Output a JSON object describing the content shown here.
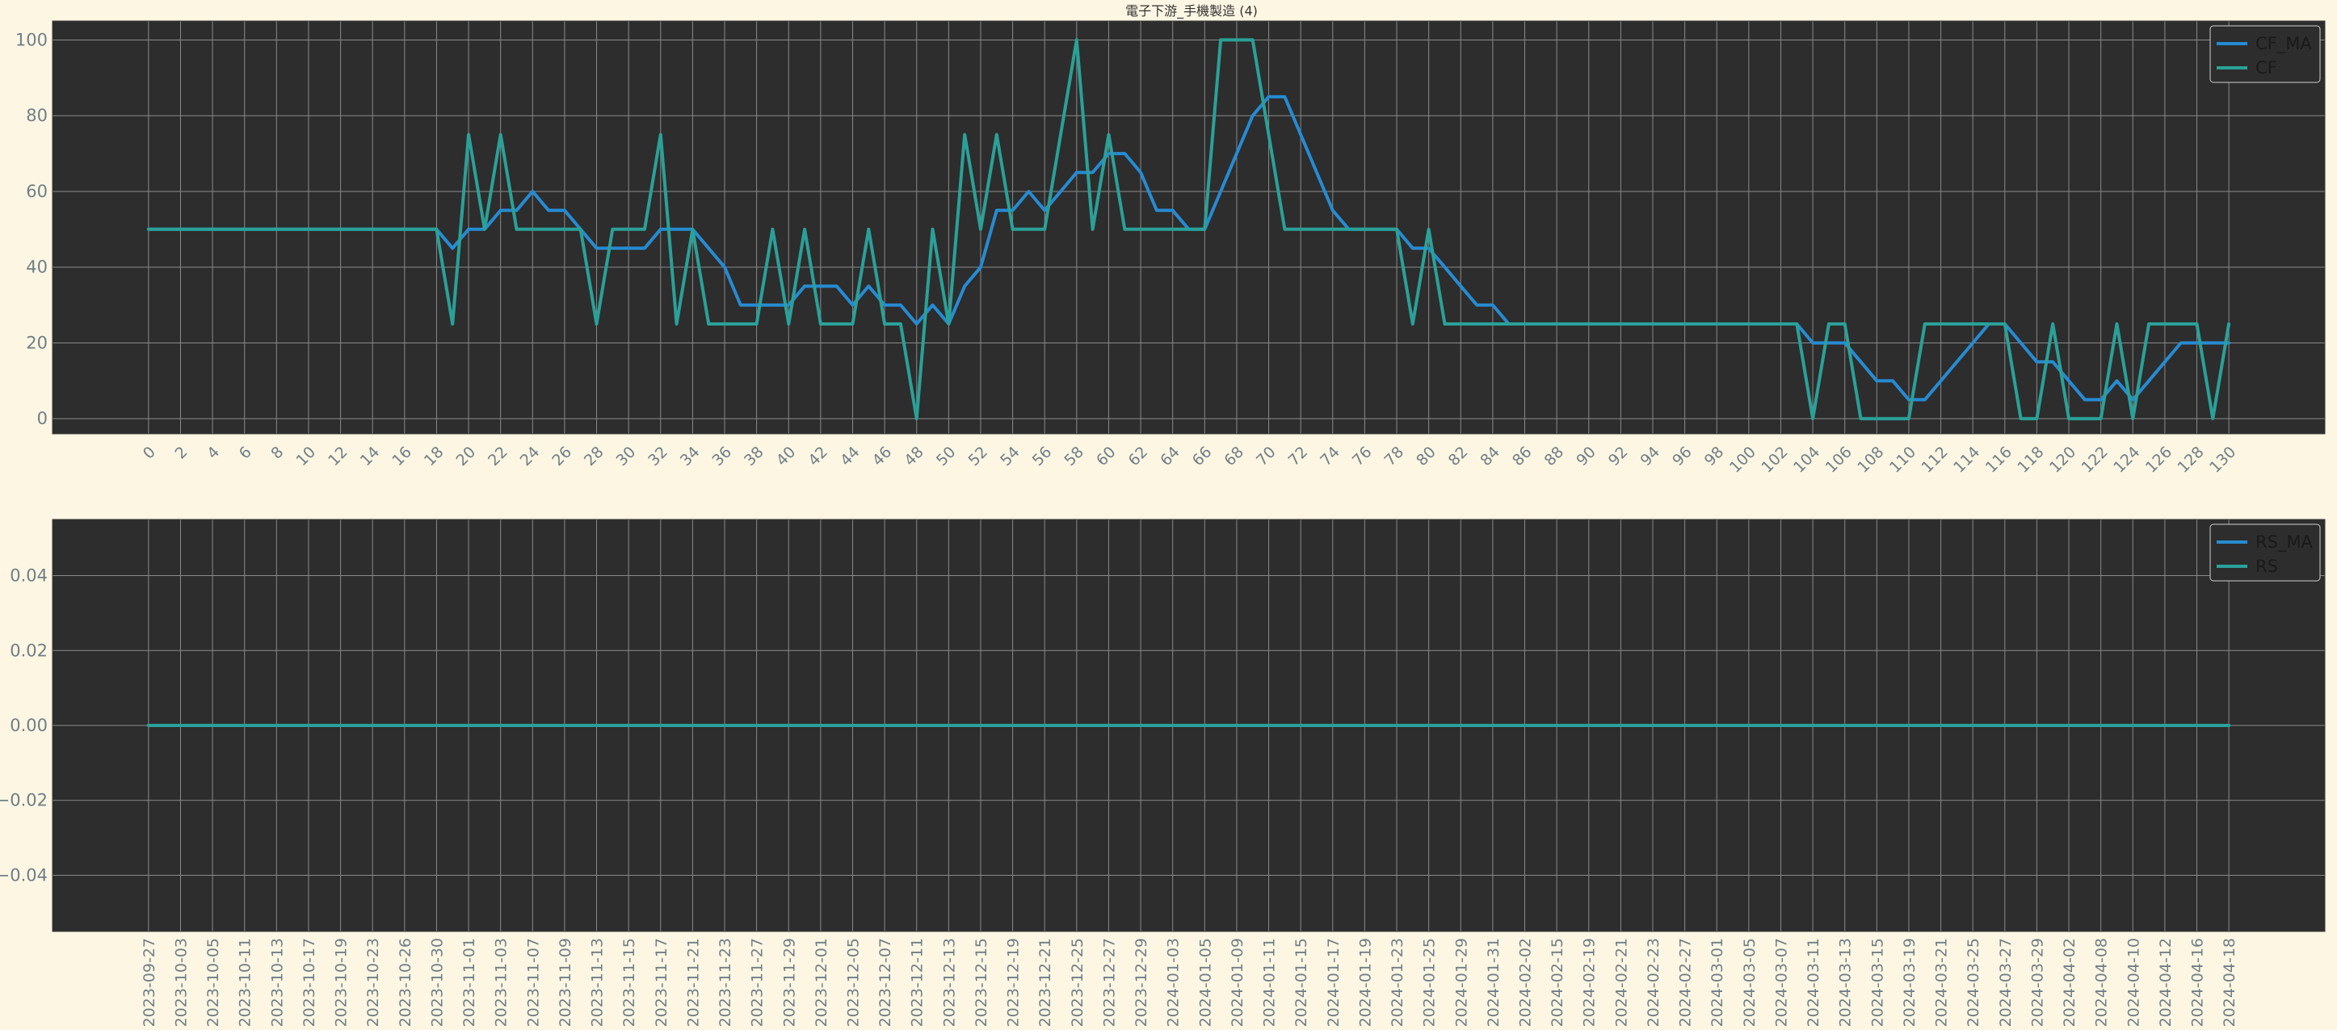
{
  "figure": {
    "title": "電子下游_手機製造 (4)",
    "colors": {
      "page_bg": "#fdf6e3",
      "axes_bg": "#2d2d2d",
      "grid": "#8a8a8a",
      "tick": "#6f7f87",
      "ma": "#268bd2",
      "raw": "#2aa198"
    }
  },
  "chart_data": [
    {
      "type": "line",
      "title": "電子下游_手機製造 (4)",
      "xlabel": "",
      "ylabel": "",
      "xlim": [
        -6,
        136
      ],
      "ylim": [
        -4,
        105
      ],
      "x_ticks": [
        0,
        2,
        4,
        6,
        8,
        10,
        12,
        14,
        16,
        18,
        20,
        22,
        24,
        26,
        28,
        30,
        32,
        34,
        36,
        38,
        40,
        42,
        44,
        46,
        48,
        50,
        52,
        54,
        56,
        58,
        60,
        62,
        64,
        66,
        68,
        70,
        72,
        74,
        76,
        78,
        80,
        82,
        84,
        86,
        88,
        90,
        92,
        94,
        96,
        98,
        100,
        102,
        104,
        106,
        108,
        110,
        112,
        114,
        116,
        118,
        120,
        122,
        124,
        126,
        128,
        130
      ],
      "y_ticks": [
        "0",
        "20",
        "40",
        "60",
        "80",
        "100"
      ],
      "y_tick_values": [
        0,
        20,
        40,
        60,
        80,
        100
      ],
      "grid": true,
      "legend_position": "top-right",
      "series": [
        {
          "name": "CF_MA",
          "color": "#268bd2",
          "values": [
            50,
            50,
            50,
            50,
            50,
            50,
            50,
            50,
            50,
            50,
            50,
            50,
            50,
            50,
            50,
            50,
            50,
            50,
            50,
            45,
            50,
            50,
            55,
            55,
            60,
            55,
            55,
            50,
            45,
            45,
            45,
            45,
            50,
            50,
            50,
            45,
            40,
            30,
            30,
            30,
            30,
            35,
            35,
            35,
            30,
            35,
            30,
            30,
            25,
            30,
            25,
            35,
            40,
            55,
            55,
            60,
            55,
            60,
            65,
            65,
            70,
            70,
            65,
            55,
            55,
            50,
            50,
            60,
            70,
            80,
            85,
            85,
            75,
            65,
            55,
            50,
            50,
            50,
            50,
            45,
            45,
            40,
            35,
            30,
            30,
            25,
            25,
            25,
            25,
            25,
            25,
            25,
            25,
            25,
            25,
            25,
            25,
            25,
            25,
            25,
            25,
            25,
            25,
            25,
            20,
            20,
            20,
            15,
            10,
            10,
            5,
            5,
            10,
            15,
            20,
            25,
            25,
            20,
            15,
            15,
            10,
            5,
            5,
            10,
            5,
            10,
            15,
            20,
            20,
            20,
            20
          ]
        },
        {
          "name": "CF",
          "color": "#2aa198",
          "values": [
            50,
            50,
            50,
            50,
            50,
            50,
            50,
            50,
            50,
            50,
            50,
            50,
            50,
            50,
            50,
            50,
            50,
            50,
            50,
            25,
            75,
            50,
            75,
            50,
            50,
            50,
            50,
            50,
            25,
            50,
            50,
            50,
            75,
            25,
            50,
            25,
            25,
            25,
            25,
            50,
            25,
            50,
            25,
            25,
            25,
            50,
            25,
            25,
            0,
            50,
            25,
            75,
            50,
            75,
            50,
            50,
            50,
            75,
            100,
            50,
            75,
            50,
            50,
            50,
            50,
            50,
            50,
            100,
            100,
            100,
            75,
            50,
            50,
            50,
            50,
            50,
            50,
            50,
            50,
            25,
            50,
            25,
            25,
            25,
            25,
            25,
            25,
            25,
            25,
            25,
            25,
            25,
            25,
            25,
            25,
            25,
            25,
            25,
            25,
            25,
            25,
            25,
            25,
            25,
            0,
            25,
            25,
            0,
            0,
            0,
            0,
            25,
            25,
            25,
            25,
            25,
            25,
            0,
            0,
            25,
            0,
            0,
            0,
            25,
            0,
            25,
            25,
            25,
            25,
            0,
            25
          ]
        }
      ]
    },
    {
      "type": "line",
      "title": "",
      "xlabel": "",
      "ylabel": "",
      "xlim": [
        -6,
        136
      ],
      "ylim": [
        -0.055,
        0.055
      ],
      "x_tick_labels": [
        "2023-09-27",
        "2023-10-03",
        "2023-10-05",
        "2023-10-11",
        "2023-10-13",
        "2023-10-17",
        "2023-10-19",
        "2023-10-23",
        "2023-10-26",
        "2023-10-30",
        "2023-11-01",
        "2023-11-03",
        "2023-11-07",
        "2023-11-09",
        "2023-11-13",
        "2023-11-15",
        "2023-11-17",
        "2023-11-21",
        "2023-11-23",
        "2023-11-27",
        "2023-11-29",
        "2023-12-01",
        "2023-12-05",
        "2023-12-07",
        "2023-12-11",
        "2023-12-13",
        "2023-12-15",
        "2023-12-19",
        "2023-12-21",
        "2023-12-25",
        "2023-12-27",
        "2023-12-29",
        "2024-01-03",
        "2024-01-05",
        "2024-01-09",
        "2024-01-11",
        "2024-01-15",
        "2024-01-17",
        "2024-01-19",
        "2024-01-23",
        "2024-01-25",
        "2024-01-29",
        "2024-01-31",
        "2024-02-02",
        "2024-02-15",
        "2024-02-19",
        "2024-02-21",
        "2024-02-23",
        "2024-02-27",
        "2024-03-01",
        "2024-03-05",
        "2024-03-07",
        "2024-03-11",
        "2024-03-13",
        "2024-03-15",
        "2024-03-19",
        "2024-03-21",
        "2024-03-25",
        "2024-03-27",
        "2024-03-29",
        "2024-04-02",
        "2024-04-08",
        "2024-04-10",
        "2024-04-12",
        "2024-04-16",
        "2024-04-18"
      ],
      "y_ticks": [
        "−0.04",
        "−0.02",
        "0.00",
        "0.02",
        "0.04"
      ],
      "y_tick_values": [
        -0.04,
        -0.02,
        0,
        0.02,
        0.04
      ],
      "grid": true,
      "legend_position": "top-right",
      "series": [
        {
          "name": "RS_MA",
          "color": "#268bd2",
          "constant": 0
        },
        {
          "name": "RS",
          "color": "#2aa198",
          "constant": 0
        }
      ]
    }
  ]
}
